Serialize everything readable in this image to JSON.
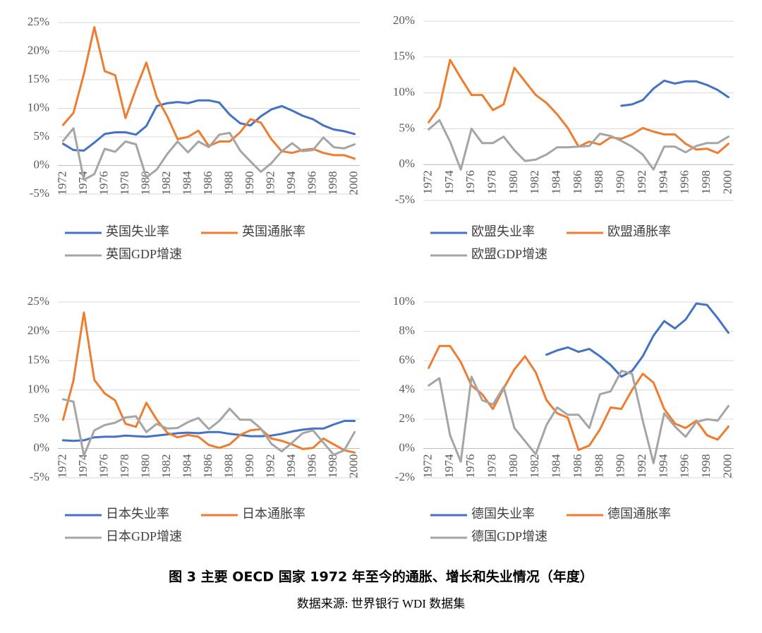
{
  "chart_data": [
    {
      "type": "line",
      "categories": [
        "1972",
        null,
        "1974",
        null,
        "1976",
        null,
        "1978",
        null,
        "1980",
        null,
        "1982",
        null,
        "1984",
        null,
        "1986",
        null,
        "1988",
        null,
        "1990",
        null,
        "1992",
        null,
        "1994",
        null,
        "1996",
        null,
        "1998",
        null,
        "2000"
      ],
      "ylim": [
        -5,
        25
      ],
      "yticks": [
        {
          "value": -5,
          "label": "-5%"
        },
        {
          "value": 0,
          "label": "0%"
        },
        {
          "value": 5,
          "label": "5%"
        },
        {
          "value": 10,
          "label": "10%"
        },
        {
          "value": 15,
          "label": "15%"
        },
        {
          "value": 20,
          "label": "20%"
        },
        {
          "value": 25,
          "label": "25%"
        }
      ],
      "grid": true,
      "series": [
        {
          "name": "英国失业率",
          "color": "#4472c4",
          "values": [
            3.8,
            2.7,
            2.6,
            4.0,
            5.5,
            5.8,
            5.8,
            5.4,
            6.9,
            10.4,
            10.9,
            11.1,
            10.9,
            11.4,
            11.4,
            11.0,
            8.9,
            7.4,
            7.0,
            8.6,
            9.8,
            10.4,
            9.6,
            8.7,
            8.1,
            7.0,
            6.3,
            6.0,
            5.5
          ]
        },
        {
          "name": "英国通胀率",
          "color": "#ed7d31",
          "values": [
            7.1,
            9.2,
            16.0,
            24.2,
            16.5,
            15.8,
            8.3,
            13.4,
            18.0,
            11.9,
            8.6,
            4.6,
            5.0,
            6.1,
            3.4,
            4.2,
            4.2,
            5.8,
            8.1,
            7.5,
            4.6,
            2.5,
            2.2,
            2.7,
            2.9,
            2.2,
            1.8,
            1.8,
            1.2
          ]
        },
        {
          "name": "英国GDP增速",
          "color": "#a5a5a5",
          "values": [
            4.3,
            6.5,
            -2.5,
            -1.5,
            2.9,
            2.4,
            4.2,
            3.7,
            -2.1,
            -0.7,
            2.0,
            4.2,
            2.3,
            4.2,
            3.2,
            5.4,
            5.7,
            2.6,
            0.7,
            -1.1,
            0.4,
            2.5,
            3.9,
            2.5,
            2.7,
            4.9,
            3.2,
            3.0,
            3.7
          ]
        }
      ]
    },
    {
      "type": "line",
      "categories": [
        "1972",
        null,
        "1974",
        null,
        "1976",
        null,
        "1978",
        null,
        "1980",
        null,
        "1982",
        null,
        "1984",
        null,
        "1986",
        null,
        "1988",
        null,
        "1990",
        null,
        "1992",
        null,
        "1994",
        null,
        "1996",
        null,
        "1998",
        null,
        "2000"
      ],
      "ylim": [
        -5,
        20
      ],
      "yticks": [
        {
          "value": -5,
          "label": "-5%"
        },
        {
          "value": 0,
          "label": "0%"
        },
        {
          "value": 5,
          "label": "5%"
        },
        {
          "value": 10,
          "label": "10%"
        },
        {
          "value": 15,
          "label": "15%"
        },
        {
          "value": 20,
          "label": "20%"
        }
      ],
      "grid": true,
      "series": [
        {
          "name": "欧盟失业率",
          "color": "#4472c4",
          "values": [
            null,
            null,
            null,
            null,
            null,
            null,
            null,
            null,
            null,
            null,
            null,
            null,
            null,
            null,
            null,
            null,
            null,
            null,
            8.2,
            8.4,
            9.0,
            10.6,
            11.7,
            11.3,
            11.6,
            11.6,
            11.1,
            10.4,
            9.4
          ]
        },
        {
          "name": "欧盟通胀率",
          "color": "#ed7d31",
          "values": [
            5.9,
            8.0,
            14.6,
            12.1,
            9.7,
            9.7,
            7.6,
            8.4,
            13.5,
            11.6,
            9.7,
            8.6,
            7.0,
            5.1,
            2.5,
            3.2,
            2.8,
            3.8,
            3.6,
            4.2,
            5.1,
            4.6,
            4.2,
            4.2,
            2.9,
            2.1,
            2.2,
            1.6,
            2.9
          ]
        },
        {
          "name": "欧盟GDP增速",
          "color": "#a5a5a5",
          "values": [
            4.9,
            6.2,
            3.2,
            -0.7,
            5.0,
            3.0,
            3.0,
            3.9,
            2.0,
            0.5,
            0.7,
            1.4,
            2.4,
            2.4,
            2.5,
            2.6,
            4.3,
            4.0,
            3.3,
            2.5,
            1.4,
            -0.7,
            2.5,
            2.5,
            1.7,
            2.6,
            3.0,
            3.0,
            3.9
          ]
        }
      ]
    },
    {
      "type": "line",
      "categories": [
        "1972",
        null,
        "1974",
        null,
        "1976",
        null,
        "1978",
        null,
        "1980",
        null,
        "1982",
        null,
        "1984",
        null,
        "1986",
        null,
        "1988",
        null,
        "1990",
        null,
        "1992",
        null,
        "1994",
        null,
        "1996",
        null,
        "1998",
        null,
        "2000"
      ],
      "ylim": [
        -5,
        25
      ],
      "yticks": [
        {
          "value": -5,
          "label": "-5%"
        },
        {
          "value": 0,
          "label": "0%"
        },
        {
          "value": 5,
          "label": "5%"
        },
        {
          "value": 10,
          "label": "10%"
        },
        {
          "value": 15,
          "label": "15%"
        },
        {
          "value": 20,
          "label": "20%"
        },
        {
          "value": 25,
          "label": "25%"
        }
      ],
      "grid": true,
      "series": [
        {
          "name": "日本失业率",
          "color": "#4472c4",
          "values": [
            1.4,
            1.3,
            1.4,
            1.9,
            2.0,
            2.0,
            2.2,
            2.1,
            2.0,
            2.2,
            2.4,
            2.6,
            2.7,
            2.6,
            2.8,
            2.8,
            2.5,
            2.3,
            2.1,
            2.1,
            2.2,
            2.5,
            2.9,
            3.2,
            3.4,
            3.4,
            4.1,
            4.7,
            4.7
          ]
        },
        {
          "name": "日本通胀率",
          "color": "#ed7d31",
          "values": [
            4.9,
            11.6,
            23.2,
            11.7,
            9.4,
            8.2,
            4.2,
            3.7,
            7.8,
            4.9,
            2.7,
            1.9,
            2.3,
            2.0,
            0.6,
            0.1,
            0.7,
            2.3,
            3.1,
            3.3,
            1.7,
            1.3,
            0.7,
            -0.1,
            0.1,
            1.7,
            0.7,
            -0.3,
            -0.7
          ]
        },
        {
          "name": "日本GDP增速",
          "color": "#a5a5a5",
          "values": [
            8.4,
            8.0,
            -1.2,
            3.1,
            4.0,
            4.4,
            5.3,
            5.5,
            2.8,
            4.2,
            3.4,
            3.5,
            4.5,
            5.2,
            3.3,
            4.7,
            6.8,
            4.9,
            4.9,
            3.4,
            0.8,
            -0.5,
            1.0,
            2.6,
            3.1,
            1.0,
            -1.1,
            -0.3,
            2.8
          ]
        }
      ]
    },
    {
      "type": "line",
      "categories": [
        "1972",
        null,
        "1974",
        null,
        "1976",
        null,
        "1978",
        null,
        "1980",
        null,
        "1982",
        null,
        "1984",
        null,
        "1986",
        null,
        "1988",
        null,
        "1990",
        null,
        "1992",
        null,
        "1994",
        null,
        "1996",
        null,
        "1998",
        null,
        "2000"
      ],
      "ylim": [
        -2,
        10
      ],
      "yticks": [
        {
          "value": -2,
          "label": "-2%"
        },
        {
          "value": 0,
          "label": "0%"
        },
        {
          "value": 2,
          "label": "2%"
        },
        {
          "value": 4,
          "label": "4%"
        },
        {
          "value": 6,
          "label": "6%"
        },
        {
          "value": 8,
          "label": "8%"
        },
        {
          "value": 10,
          "label": "10%"
        }
      ],
      "grid": true,
      "series": [
        {
          "name": "德国失业率",
          "color": "#4472c4",
          "values": [
            null,
            null,
            null,
            null,
            null,
            null,
            null,
            null,
            null,
            null,
            null,
            6.4,
            6.7,
            6.9,
            6.6,
            6.8,
            6.3,
            5.7,
            4.9,
            5.3,
            6.3,
            7.7,
            8.7,
            8.2,
            8.8,
            9.9,
            9.8,
            8.9,
            7.9
          ]
        },
        {
          "name": "德国通胀率",
          "color": "#ed7d31",
          "values": [
            5.5,
            7.0,
            7.0,
            5.9,
            4.3,
            3.7,
            2.7,
            4.1,
            5.4,
            6.3,
            5.2,
            3.3,
            2.4,
            2.1,
            -0.1,
            0.2,
            1.3,
            2.8,
            2.7,
            4.0,
            5.1,
            4.5,
            2.7,
            1.7,
            1.4,
            1.9,
            0.9,
            0.6,
            1.5
          ]
        },
        {
          "name": "德国GDP增速",
          "color": "#a5a5a5",
          "values": [
            4.3,
            4.8,
            0.9,
            -0.9,
            4.9,
            3.3,
            3.0,
            4.2,
            1.4,
            0.5,
            -0.4,
            1.6,
            2.8,
            2.3,
            2.3,
            1.4,
            3.7,
            3.9,
            5.3,
            5.1,
            1.9,
            -1.0,
            2.4,
            1.5,
            0.8,
            1.8,
            2.0,
            1.9,
            2.9
          ]
        }
      ]
    }
  ],
  "caption": {
    "title": "图 3 主要 OECD 国家 1972 年至今的通胀、增长和失业情况（年度）",
    "source": "数据来源: 世界银行 WDI 数据集"
  }
}
